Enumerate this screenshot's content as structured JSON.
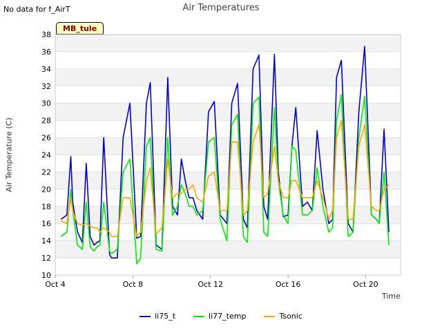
{
  "header": {
    "no_data_note": "No data for f_AirT",
    "site_tag": "MB_tule"
  },
  "chart_data": {
    "type": "line",
    "title": "Air Temperatures",
    "xlabel": "Time",
    "ylabel": "Air Temperature (C)",
    "ylim": [
      10,
      38
    ],
    "yticks": [
      10,
      12,
      14,
      16,
      18,
      20,
      22,
      24,
      26,
      28,
      30,
      32,
      34,
      36,
      38
    ],
    "x_ticks": [
      "Oct 4",
      "Oct 8",
      "Oct 12",
      "Oct 16",
      "Oct 20"
    ],
    "x_tick_days": [
      4,
      8,
      12,
      16,
      20
    ],
    "xlim_days": [
      4,
      21.8
    ],
    "grid": true,
    "legend_position": "bottom",
    "x_unit": "day of October",
    "series": [
      {
        "name": "li75_t",
        "color": "#0000cc",
        "x": [
          4.3,
          4.6,
          4.8,
          4.9,
          5.15,
          5.4,
          5.6,
          5.8,
          6.0,
          6.15,
          6.3,
          6.5,
          6.8,
          6.9,
          7.2,
          7.5,
          7.85,
          8.2,
          8.4,
          8.7,
          8.9,
          9.2,
          9.5,
          9.8,
          10.05,
          10.3,
          10.5,
          10.7,
          10.9,
          11.1,
          11.3,
          11.6,
          11.9,
          12.2,
          12.5,
          12.85,
          13.1,
          13.4,
          13.7,
          13.9,
          14.2,
          14.5,
          14.75,
          14.95,
          15.3,
          15.5,
          15.75,
          16.0,
          16.2,
          16.4,
          16.75,
          17.0,
          17.25,
          17.5,
          17.8,
          18.1,
          18.3,
          18.5,
          18.75,
          19.1,
          19.35,
          19.65,
          19.95,
          20.3,
          20.55,
          20.7,
          20.95,
          21.2
        ],
        "y": [
          16.5,
          17,
          23.8,
          18.5,
          15,
          13.8,
          23,
          14.5,
          13.5,
          13.8,
          14,
          26,
          12.4,
          12,
          12,
          26,
          30,
          14.3,
          14.5,
          30,
          32.4,
          13.5,
          13,
          33,
          18,
          17,
          23.5,
          21,
          19,
          19,
          17.5,
          16.5,
          29,
          30.2,
          17,
          16,
          30,
          32.3,
          16.5,
          15.5,
          34,
          35.6,
          18,
          16.5,
          35.7,
          22,
          16.8,
          17,
          25,
          29.5,
          18,
          18.5,
          17.5,
          26.8,
          20,
          16,
          16.5,
          33,
          35,
          16,
          15,
          29,
          36.6,
          17,
          16.5,
          16,
          27,
          15
        ]
      },
      {
        "name": "li77_temp",
        "color": "#00ee00",
        "x": [
          4.3,
          4.6,
          4.8,
          4.9,
          5.15,
          5.4,
          5.6,
          5.8,
          6.0,
          6.15,
          6.3,
          6.5,
          6.8,
          6.9,
          7.2,
          7.5,
          7.85,
          8.2,
          8.4,
          8.7,
          8.9,
          9.2,
          9.5,
          9.8,
          10.05,
          10.3,
          10.5,
          10.7,
          10.9,
          11.1,
          11.3,
          11.6,
          11.9,
          12.2,
          12.5,
          12.85,
          13.1,
          13.4,
          13.7,
          13.9,
          14.2,
          14.5,
          14.75,
          14.95,
          15.3,
          15.5,
          15.75,
          16.0,
          16.2,
          16.4,
          16.75,
          17.0,
          17.25,
          17.5,
          17.8,
          18.1,
          18.3,
          18.5,
          18.75,
          19.1,
          19.35,
          19.65,
          19.95,
          20.3,
          20.55,
          20.7,
          20.95,
          21.2
        ],
        "y": [
          14.5,
          15,
          20,
          17.5,
          13.5,
          13,
          18.5,
          13.3,
          12.8,
          13.3,
          13.5,
          18.5,
          12.8,
          12.5,
          13,
          22,
          23.5,
          11.3,
          12,
          25,
          26,
          13,
          12.8,
          26,
          17,
          18,
          20.5,
          19.5,
          18,
          18,
          17,
          17.5,
          25.5,
          26,
          16.5,
          14,
          27.5,
          28.7,
          14.5,
          13.8,
          30,
          30.7,
          15,
          14.5,
          29.5,
          21,
          17,
          16,
          25,
          24.5,
          17,
          17,
          17.5,
          22.5,
          18,
          15,
          15.5,
          28,
          31,
          14.5,
          15,
          26,
          30.8,
          17,
          16.5,
          16,
          22,
          13.5
        ]
      },
      {
        "name": "Tsonic",
        "color": "#ffa500",
        "x": [
          4.3,
          4.6,
          4.8,
          4.9,
          5.15,
          5.4,
          5.6,
          5.8,
          6.0,
          6.15,
          6.3,
          6.5,
          6.8,
          6.9,
          7.2,
          7.5,
          7.85,
          8.2,
          8.4,
          8.7,
          8.9,
          9.2,
          9.5,
          9.8,
          10.05,
          10.3,
          10.5,
          10.7,
          10.9,
          11.1,
          11.3,
          11.6,
          11.9,
          12.2,
          12.5,
          12.85,
          13.1,
          13.4,
          13.7,
          13.9,
          14.2,
          14.5,
          14.75,
          14.95,
          15.3,
          15.5,
          15.75,
          16.0,
          16.2,
          16.4,
          16.75,
          17.0,
          17.25,
          17.5,
          17.8,
          18.1,
          18.3,
          18.5,
          18.75,
          19.1,
          19.35,
          19.65,
          19.95,
          20.3,
          20.55,
          20.7,
          20.95,
          21.2
        ],
        "y": [
          16.3,
          16,
          19,
          17.5,
          16,
          15.8,
          16,
          15.7,
          15.5,
          15.5,
          15,
          15.5,
          15,
          14.5,
          14.5,
          19,
          19,
          14.5,
          15,
          21,
          22.5,
          14.8,
          15.5,
          23.5,
          19,
          19.5,
          19.5,
          20,
          20,
          20.5,
          19,
          18.5,
          21.5,
          22,
          17.5,
          17.5,
          25.5,
          25.5,
          17,
          17.5,
          25.5,
          27.5,
          19,
          19.5,
          25,
          21,
          19,
          19,
          21,
          21,
          19,
          19,
          19,
          21,
          19,
          16.5,
          17.5,
          26,
          28,
          16.5,
          16.5,
          25,
          27.5,
          18,
          17.5,
          17.5,
          20,
          20.5
        ]
      }
    ]
  }
}
